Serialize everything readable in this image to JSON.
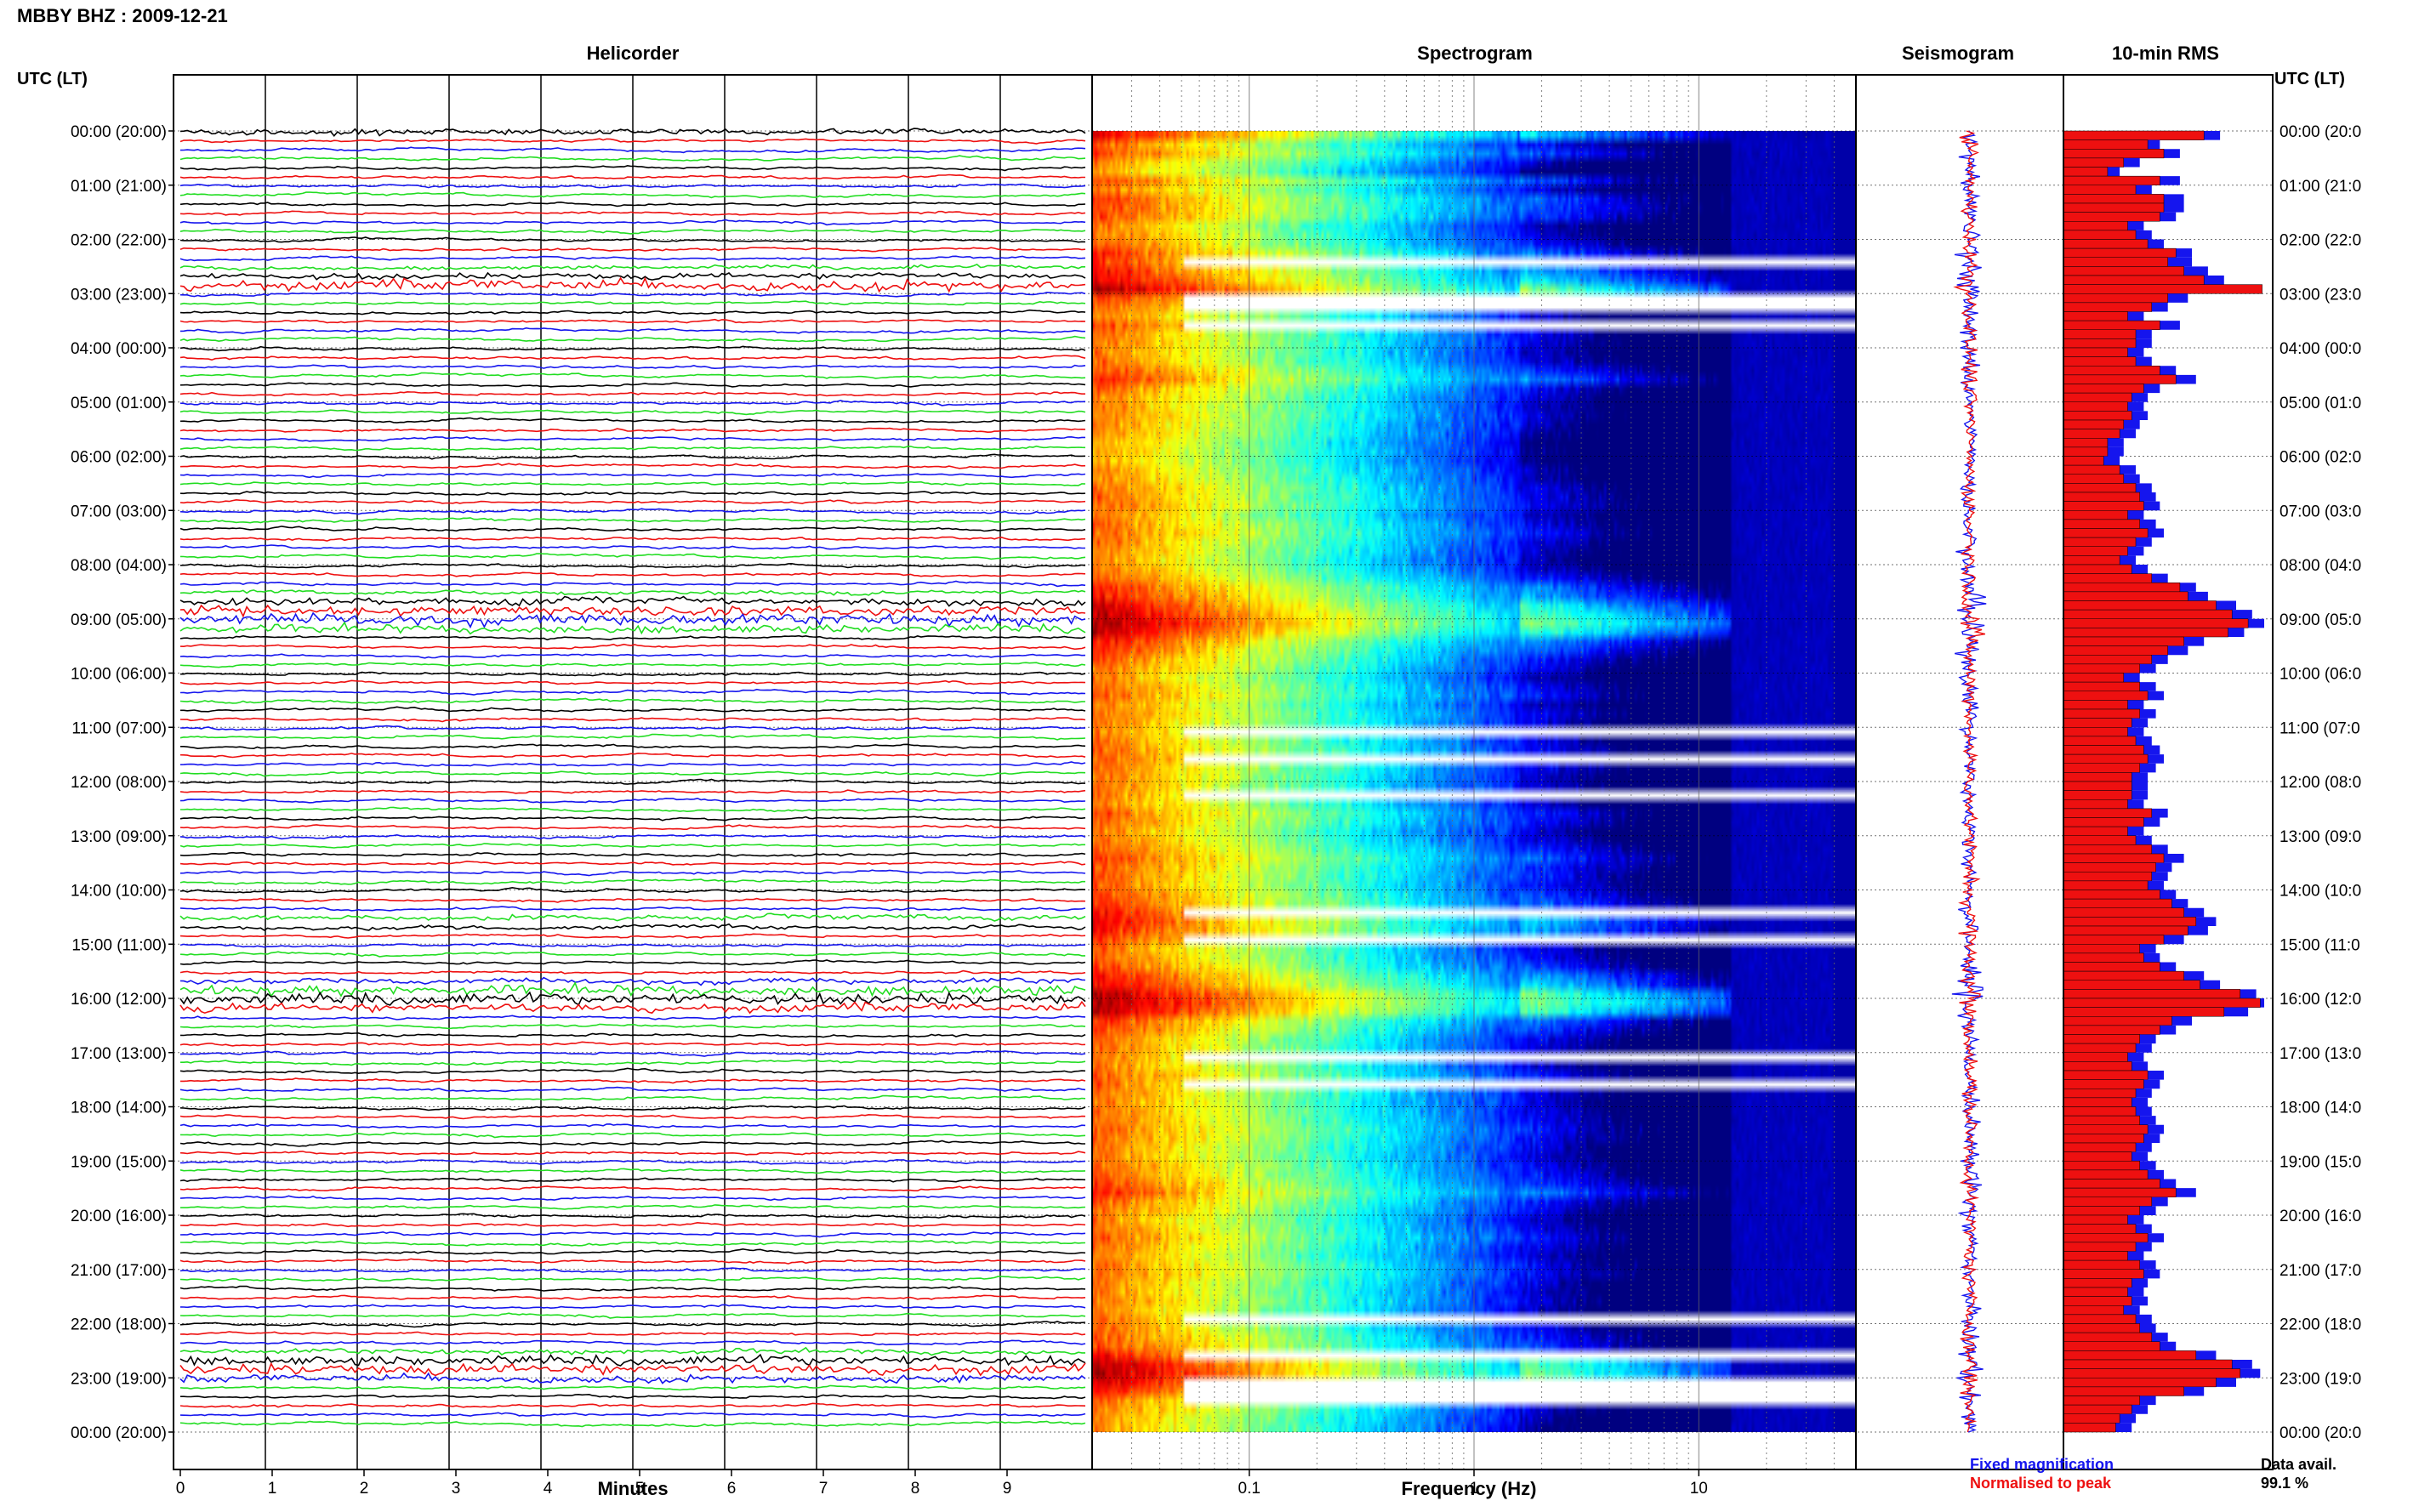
{
  "header": {
    "title": "MBBY BHZ : 2009-12-21"
  },
  "columns": {
    "helicorder": "Helicorder",
    "spectrogram": "Spectrogram",
    "seismogram": "Seismogram",
    "rms": "10-min RMS",
    "time_left": "UTC (LT)",
    "time_right": "UTC (LT)"
  },
  "axes": {
    "minutes_label": "Minutes",
    "frequency_label": "Frequency (Hz)",
    "minute_ticks": [
      "0",
      "1",
      "2",
      "3",
      "4",
      "5",
      "6",
      "7",
      "8",
      "9"
    ],
    "frequency_ticks": [
      "0.1",
      "1",
      "10"
    ]
  },
  "legend": {
    "fixed": "Fixed magnification",
    "normalised": "Normalised to peak",
    "fixed_color": "#1515ee",
    "normalised_color": "#ee1010"
  },
  "data_availability": {
    "label": "Data avail.",
    "value": "99.1 %"
  },
  "chart_data": {
    "type": "helicorder-spectrogram",
    "station": "MBBY BHZ",
    "date": "2009-12-21",
    "hour_labels_left": [
      "00:00 (20:00)",
      "01:00 (21:00)",
      "02:00 (22:00)",
      "03:00 (23:00)",
      "04:00 (00:00)",
      "05:00 (01:00)",
      "06:00 (02:00)",
      "07:00 (03:00)",
      "08:00 (04:00)",
      "09:00 (05:00)",
      "10:00 (06:00)",
      "11:00 (07:00)",
      "12:00 (08:00)",
      "13:00 (09:00)",
      "14:00 (10:00)",
      "15:00 (11:00)",
      "16:00 (12:00)",
      "17:00 (13:00)",
      "18:00 (14:00)",
      "19:00 (15:00)",
      "20:00 (16:00)",
      "21:00 (17:00)",
      "22:00 (18:00)",
      "23:00 (19:00)",
      "00:00 (20:00)"
    ],
    "hour_labels_right": [
      "00:00 (20:0",
      "01:00 (21:0",
      "02:00 (22:0",
      "03:00 (23:0",
      "04:00 (00:0",
      "05:00 (01:0",
      "06:00 (02:0",
      "07:00 (03:0",
      "08:00 (04:0",
      "09:00 (05:0",
      "10:00 (06:0",
      "11:00 (07:0",
      "12:00 (08:0",
      "13:00 (09:0",
      "14:00 (10:0",
      "15:00 (11:0",
      "16:00 (12:0",
      "17:00 (13:0",
      "18:00 (14:0",
      "19:00 (15:0",
      "20:00 (16:0",
      "21:00 (17:0",
      "22:00 (18:0",
      "23:00 (19:0",
      "00:00 (20:0"
    ],
    "minutes_range": [
      0,
      10
    ],
    "frequency_range_hz": [
      0.02,
      50
    ],
    "frequency_scale": "log",
    "trace_colors": [
      "#000000",
      "#ee1010",
      "#1515ee",
      "#22dd22"
    ],
    "rms_fixed": [
      0.78,
      0.48,
      0.58,
      0.38,
      0.28,
      0.58,
      0.44,
      0.6,
      0.6,
      0.56,
      0.4,
      0.44,
      0.5,
      0.64,
      0.64,
      0.72,
      0.8,
      0.98,
      0.62,
      0.52,
      0.4,
      0.58,
      0.44,
      0.44,
      0.4,
      0.44,
      0.56,
      0.66,
      0.48,
      0.42,
      0.4,
      0.42,
      0.38,
      0.36,
      0.3,
      0.3,
      0.28,
      0.36,
      0.38,
      0.44,
      0.46,
      0.48,
      0.4,
      0.46,
      0.5,
      0.44,
      0.4,
      0.36,
      0.42,
      0.52,
      0.66,
      0.72,
      0.86,
      0.94,
      1.0,
      0.9,
      0.7,
      0.62,
      0.52,
      0.46,
      0.38,
      0.46,
      0.5,
      0.4,
      0.46,
      0.42,
      0.4,
      0.44,
      0.48,
      0.5,
      0.46,
      0.42,
      0.42,
      0.42,
      0.4,
      0.52,
      0.48,
      0.4,
      0.44,
      0.52,
      0.6,
      0.54,
      0.52,
      0.5,
      0.56,
      0.62,
      0.7,
      0.76,
      0.72,
      0.6,
      0.46,
      0.48,
      0.56,
      0.7,
      0.78,
      0.96,
      1.0,
      0.92,
      0.64,
      0.56,
      0.46,
      0.44,
      0.4,
      0.42,
      0.5,
      0.48,
      0.44,
      0.42,
      0.44,
      0.46,
      0.5,
      0.48,
      0.44,
      0.42,
      0.46,
      0.5,
      0.56,
      0.66,
      0.52,
      0.46,
      0.4,
      0.44,
      0.5,
      0.44,
      0.4,
      0.46,
      0.48,
      0.42,
      0.4,
      0.42,
      0.38,
      0.44,
      0.46,
      0.52,
      0.56,
      0.76,
      0.94,
      0.98,
      0.86,
      0.7,
      0.46,
      0.42,
      0.36,
      0.34
    ],
    "rms_normalised": [
      0.7,
      0.42,
      0.5,
      0.3,
      0.22,
      0.48,
      0.36,
      0.5,
      0.5,
      0.48,
      0.32,
      0.36,
      0.42,
      0.56,
      0.52,
      0.6,
      0.7,
      0.99,
      0.52,
      0.44,
      0.32,
      0.48,
      0.36,
      0.36,
      0.32,
      0.36,
      0.48,
      0.56,
      0.4,
      0.34,
      0.32,
      0.34,
      0.3,
      0.28,
      0.22,
      0.22,
      0.2,
      0.28,
      0.3,
      0.36,
      0.38,
      0.4,
      0.32,
      0.38,
      0.42,
      0.36,
      0.32,
      0.28,
      0.34,
      0.44,
      0.58,
      0.62,
      0.76,
      0.84,
      0.92,
      0.82,
      0.6,
      0.52,
      0.44,
      0.38,
      0.3,
      0.38,
      0.42,
      0.32,
      0.38,
      0.34,
      0.32,
      0.36,
      0.4,
      0.42,
      0.38,
      0.34,
      0.34,
      0.34,
      0.32,
      0.44,
      0.4,
      0.32,
      0.36,
      0.44,
      0.5,
      0.46,
      0.44,
      0.42,
      0.48,
      0.54,
      0.6,
      0.66,
      0.62,
      0.5,
      0.38,
      0.4,
      0.48,
      0.6,
      0.68,
      0.88,
      0.98,
      0.8,
      0.54,
      0.48,
      0.38,
      0.36,
      0.32,
      0.34,
      0.42,
      0.4,
      0.36,
      0.34,
      0.36,
      0.38,
      0.42,
      0.4,
      0.36,
      0.34,
      0.38,
      0.42,
      0.48,
      0.56,
      0.44,
      0.38,
      0.32,
      0.36,
      0.42,
      0.36,
      0.32,
      0.38,
      0.4,
      0.34,
      0.32,
      0.34,
      0.3,
      0.36,
      0.38,
      0.44,
      0.48,
      0.66,
      0.84,
      0.88,
      0.76,
      0.6,
      0.38,
      0.34,
      0.28,
      0.26
    ]
  }
}
